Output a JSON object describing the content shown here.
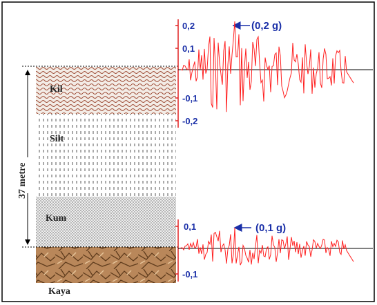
{
  "layers": [
    {
      "label": "Kil"
    },
    {
      "label": "Silt"
    },
    {
      "label": "Kum"
    },
    {
      "label": "Kaya"
    }
  ],
  "depth_label": "37 metre",
  "surface_record": {
    "ticks": [
      "0,2",
      "0,1",
      "-0,1",
      "-0,2"
    ],
    "peak_label": "(0,2 g)"
  },
  "rock_record": {
    "ticks": [
      "0,1",
      "-0,1"
    ],
    "peak_label": "(0,1 g)"
  }
}
